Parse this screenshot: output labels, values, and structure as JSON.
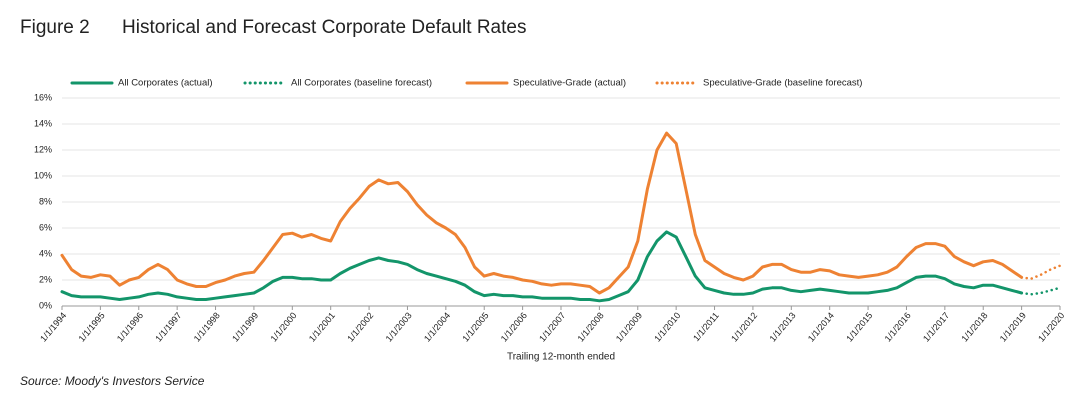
{
  "chart_data": {
    "type": "line",
    "figure_label": "Figure 2",
    "title": "Historical and Forecast Corporate Default Rates",
    "xlabel": "Trailing 12-month ended",
    "source": "Source: Moody's Investors Service",
    "x": [
      "1994-01-01",
      "1994-04-01",
      "1994-07-01",
      "1994-10-01",
      "1995-01-01",
      "1995-04-01",
      "1995-07-01",
      "1995-10-01",
      "1996-01-01",
      "1996-04-01",
      "1996-07-01",
      "1996-10-01",
      "1997-01-01",
      "1997-04-01",
      "1997-07-01",
      "1997-10-01",
      "1998-01-01",
      "1998-04-01",
      "1998-07-01",
      "1998-10-01",
      "1999-01-01",
      "1999-04-01",
      "1999-07-01",
      "1999-10-01",
      "2000-01-01",
      "2000-04-01",
      "2000-07-01",
      "2000-10-01",
      "2001-01-01",
      "2001-04-01",
      "2001-07-01",
      "2001-10-01",
      "2002-01-01",
      "2002-04-01",
      "2002-07-01",
      "2002-10-01",
      "2003-01-01",
      "2003-04-01",
      "2003-07-01",
      "2003-10-01",
      "2004-01-01",
      "2004-04-01",
      "2004-07-01",
      "2004-10-01",
      "2005-01-01",
      "2005-04-01",
      "2005-07-01",
      "2005-10-01",
      "2006-01-01",
      "2006-04-01",
      "2006-07-01",
      "2006-10-01",
      "2007-01-01",
      "2007-04-01",
      "2007-07-01",
      "2007-10-01",
      "2008-01-01",
      "2008-04-01",
      "2008-07-01",
      "2008-10-01",
      "2009-01-01",
      "2009-04-01",
      "2009-07-01",
      "2009-10-01",
      "2010-01-01",
      "2010-04-01",
      "2010-07-01",
      "2010-10-01",
      "2011-01-01",
      "2011-04-01",
      "2011-07-01",
      "2011-10-01",
      "2012-01-01",
      "2012-04-01",
      "2012-07-01",
      "2012-10-01",
      "2013-01-01",
      "2013-04-01",
      "2013-07-01",
      "2013-10-01",
      "2014-01-01",
      "2014-04-01",
      "2014-07-01",
      "2014-10-01",
      "2015-01-01",
      "2015-04-01",
      "2015-07-01",
      "2015-10-01",
      "2016-01-01",
      "2016-04-01",
      "2016-07-01",
      "2016-10-01",
      "2017-01-01",
      "2017-04-01",
      "2017-07-01",
      "2017-10-01",
      "2018-01-01",
      "2018-04-01",
      "2018-07-01",
      "2018-10-01",
      "2019-01-01",
      "2019-04-01",
      "2019-07-01",
      "2019-10-01",
      "2020-01-01"
    ],
    "series": [
      {
        "name": "All Corporates (actual)",
        "color": "#13956a",
        "style": "solid",
        "values": [
          1.1,
          0.8,
          0.7,
          0.7,
          0.7,
          0.6,
          0.5,
          0.6,
          0.7,
          0.9,
          1.0,
          0.9,
          0.7,
          0.6,
          0.5,
          0.5,
          0.6,
          0.7,
          0.8,
          0.9,
          1.0,
          1.4,
          1.9,
          2.2,
          2.2,
          2.1,
          2.1,
          2.0,
          2.0,
          2.5,
          2.9,
          3.2,
          3.5,
          3.7,
          3.5,
          3.4,
          3.2,
          2.8,
          2.5,
          2.3,
          2.1,
          1.9,
          1.6,
          1.1,
          0.8,
          0.9,
          0.8,
          0.8,
          0.7,
          0.7,
          0.6,
          0.6,
          0.6,
          0.6,
          0.5,
          0.5,
          0.4,
          0.5,
          0.8,
          1.1,
          2.0,
          3.8,
          5.0,
          5.7,
          5.3,
          3.8,
          2.3,
          1.4,
          1.2,
          1.0,
          0.9,
          0.9,
          1.0,
          1.3,
          1.4,
          1.4,
          1.2,
          1.1,
          1.2,
          1.3,
          1.2,
          1.1,
          1.0,
          1.0,
          1.0,
          1.1,
          1.2,
          1.4,
          1.8,
          2.2,
          2.3,
          2.3,
          2.1,
          1.7,
          1.5,
          1.4,
          1.6,
          1.6,
          1.4,
          1.2,
          1.0,
          null,
          null,
          null,
          null
        ]
      },
      {
        "name": "All Corporates (baseline forecast)",
        "color": "#13956a",
        "style": "dotted",
        "values": [
          null,
          null,
          null,
          null,
          null,
          null,
          null,
          null,
          null,
          null,
          null,
          null,
          null,
          null,
          null,
          null,
          null,
          null,
          null,
          null,
          null,
          null,
          null,
          null,
          null,
          null,
          null,
          null,
          null,
          null,
          null,
          null,
          null,
          null,
          null,
          null,
          null,
          null,
          null,
          null,
          null,
          null,
          null,
          null,
          null,
          null,
          null,
          null,
          null,
          null,
          null,
          null,
          null,
          null,
          null,
          null,
          null,
          null,
          null,
          null,
          null,
          null,
          null,
          null,
          null,
          null,
          null,
          null,
          null,
          null,
          null,
          null,
          null,
          null,
          null,
          null,
          null,
          null,
          null,
          null,
          null,
          null,
          null,
          null,
          null,
          null,
          null,
          null,
          null,
          null,
          null,
          null,
          null,
          null,
          null,
          null,
          null,
          null,
          null,
          null,
          1.0,
          0.9,
          1.0,
          1.2,
          1.4
        ]
      },
      {
        "name": "Speculative-Grade (actual)",
        "color": "#ee8233",
        "style": "solid",
        "values": [
          3.9,
          2.8,
          2.3,
          2.2,
          2.4,
          2.3,
          1.6,
          2.0,
          2.2,
          2.8,
          3.2,
          2.8,
          2.0,
          1.7,
          1.5,
          1.5,
          1.8,
          2.0,
          2.3,
          2.5,
          2.6,
          3.5,
          4.5,
          5.5,
          5.6,
          5.3,
          5.5,
          5.2,
          5.0,
          6.5,
          7.5,
          8.3,
          9.2,
          9.7,
          9.4,
          9.5,
          8.8,
          7.8,
          7.0,
          6.4,
          6.0,
          5.5,
          4.5,
          3.0,
          2.3,
          2.5,
          2.3,
          2.2,
          2.0,
          1.9,
          1.7,
          1.6,
          1.7,
          1.7,
          1.6,
          1.5,
          1.0,
          1.4,
          2.2,
          3.0,
          5.0,
          9.0,
          12.0,
          13.3,
          12.5,
          9.0,
          5.5,
          3.5,
          3.0,
          2.5,
          2.2,
          2.0,
          2.3,
          3.0,
          3.2,
          3.2,
          2.8,
          2.6,
          2.6,
          2.8,
          2.7,
          2.4,
          2.3,
          2.2,
          2.3,
          2.4,
          2.6,
          3.0,
          3.8,
          4.5,
          4.8,
          4.8,
          4.6,
          3.8,
          3.4,
          3.1,
          3.4,
          3.5,
          3.2,
          2.7,
          2.2,
          null,
          null,
          null,
          null
        ]
      },
      {
        "name": "Speculative-Grade (baseline forecast)",
        "color": "#ee8233",
        "style": "dotted",
        "values": [
          null,
          null,
          null,
          null,
          null,
          null,
          null,
          null,
          null,
          null,
          null,
          null,
          null,
          null,
          null,
          null,
          null,
          null,
          null,
          null,
          null,
          null,
          null,
          null,
          null,
          null,
          null,
          null,
          null,
          null,
          null,
          null,
          null,
          null,
          null,
          null,
          null,
          null,
          null,
          null,
          null,
          null,
          null,
          null,
          null,
          null,
          null,
          null,
          null,
          null,
          null,
          null,
          null,
          null,
          null,
          null,
          null,
          null,
          null,
          null,
          null,
          null,
          null,
          null,
          null,
          null,
          null,
          null,
          null,
          null,
          null,
          null,
          null,
          null,
          null,
          null,
          null,
          null,
          null,
          null,
          null,
          null,
          null,
          null,
          null,
          null,
          null,
          null,
          null,
          null,
          null,
          null,
          null,
          null,
          null,
          null,
          null,
          null,
          null,
          null,
          2.2,
          2.1,
          2.4,
          2.8,
          3.1
        ]
      }
    ],
    "xlim": [
      "1994-01-01",
      "2020-01-01"
    ],
    "xticks": [
      {
        "value": "1994-01-01",
        "label": "1/1/1994"
      },
      {
        "value": "1995-01-01",
        "label": "1/1/1995"
      },
      {
        "value": "1996-01-01",
        "label": "1/1/1996"
      },
      {
        "value": "1997-01-01",
        "label": "1/1/1997"
      },
      {
        "value": "1998-01-01",
        "label": "1/1/1998"
      },
      {
        "value": "1999-01-01",
        "label": "1/1/1999"
      },
      {
        "value": "2000-01-01",
        "label": "1/1/2000"
      },
      {
        "value": "2001-01-01",
        "label": "1/1/2001"
      },
      {
        "value": "2002-01-01",
        "label": "1/1/2002"
      },
      {
        "value": "2003-01-01",
        "label": "1/1/2003"
      },
      {
        "value": "2004-01-01",
        "label": "1/1/2004"
      },
      {
        "value": "2005-01-01",
        "label": "1/1/2005"
      },
      {
        "value": "2006-01-01",
        "label": "1/1/2006"
      },
      {
        "value": "2007-01-01",
        "label": "1/1/2007"
      },
      {
        "value": "2008-01-01",
        "label": "1/1/2008"
      },
      {
        "value": "2009-01-01",
        "label": "1/1/2009"
      },
      {
        "value": "2010-01-01",
        "label": "1/1/2010"
      },
      {
        "value": "2011-01-01",
        "label": "1/1/2011"
      },
      {
        "value": "2012-01-01",
        "label": "1/1/2012"
      },
      {
        "value": "2013-01-01",
        "label": "1/1/2013"
      },
      {
        "value": "2014-01-01",
        "label": "1/1/2014"
      },
      {
        "value": "2015-01-01",
        "label": "1/1/2015"
      },
      {
        "value": "2016-01-01",
        "label": "1/1/2016"
      },
      {
        "value": "2017-01-01",
        "label": "1/1/2017"
      },
      {
        "value": "2018-01-01",
        "label": "1/1/2018"
      },
      {
        "value": "2019-01-01",
        "label": "1/1/2019"
      },
      {
        "value": "2020-01-01",
        "label": "1/1/2020"
      }
    ],
    "ylim": [
      0,
      16
    ],
    "yticks": [
      {
        "value": 0,
        "label": "0%"
      },
      {
        "value": 2,
        "label": "2%"
      },
      {
        "value": 4,
        "label": "4%"
      },
      {
        "value": 6,
        "label": "6%"
      },
      {
        "value": 8,
        "label": "8%"
      },
      {
        "value": 10,
        "label": "10%"
      },
      {
        "value": 12,
        "label": "12%"
      },
      {
        "value": 14,
        "label": "14%"
      },
      {
        "value": 16,
        "label": "16%"
      }
    ],
    "grid": true,
    "legend": "top"
  }
}
